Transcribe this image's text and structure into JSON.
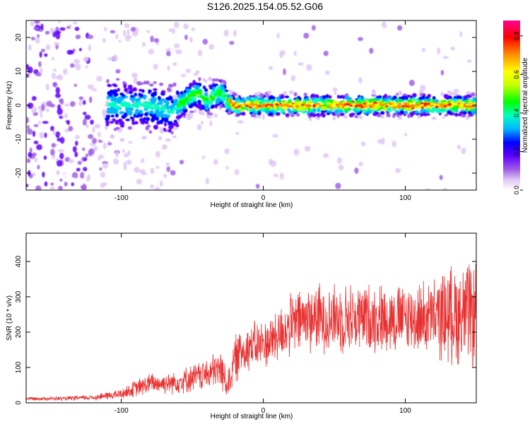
{
  "title": "S126.2025.154.05.52.G06",
  "chart_data": [
    {
      "type": "heatmap",
      "xlabel": "Height of straight line (km)",
      "ylabel": "Frequency (Hz)",
      "xlim": [
        -167,
        150
      ],
      "ylim": [
        -25,
        25
      ],
      "xticks": [
        -100,
        0,
        100
      ],
      "yticks": [
        -20,
        -10,
        0,
        10,
        20
      ],
      "colorbar": {
        "label": "Normalized spectral amplitude",
        "range": [
          0.0,
          0.88
        ],
        "ticks": [
          0.0,
          0.2,
          0.4,
          0.6,
          0.8
        ],
        "colormap": [
          "#ffffff",
          "#e0c8f4",
          "#a060e8",
          "#6000ff",
          "#0000ff",
          "#00b4ff",
          "#00ffc0",
          "#00ff00",
          "#c8ff00",
          "#ffff00",
          "#ff8c00",
          "#ff0000",
          "#ff0090"
        ]
      },
      "ridge": {
        "description_points_x": [
          -100,
          -90,
          -80,
          -70,
          -65,
          -60,
          -55,
          -50,
          -45,
          -40,
          -35,
          -30,
          -25,
          -20,
          -10,
          0,
          20,
          50,
          100,
          150
        ],
        "frequency_hz": [
          0,
          0,
          0,
          -1,
          -2,
          0,
          1.5,
          3,
          3.5,
          1.5,
          2.5,
          4,
          1,
          0,
          0,
          0,
          0,
          0,
          0,
          0
        ]
      }
    },
    {
      "type": "line",
      "xlabel": "Height of straight line (km)",
      "ylabel": "SNR (10 * v/v)",
      "xlim": [
        -167,
        150
      ],
      "ylim": [
        0,
        480
      ],
      "xticks": [
        -100,
        0,
        100
      ],
      "yticks": [
        0,
        100,
        200,
        300,
        400
      ],
      "color": "#e83030",
      "envelope": {
        "x": [
          -167,
          -140,
          -120,
          -100,
          -90,
          -80,
          -70,
          -60,
          -50,
          -40,
          -30,
          -25,
          -20,
          -15,
          -10,
          0,
          10,
          20,
          30,
          40,
          60,
          80,
          100,
          120,
          130,
          140,
          150
        ],
        "mean": [
          12,
          12,
          15,
          25,
          40,
          55,
          55,
          60,
          70,
          80,
          95,
          50,
          120,
          150,
          160,
          165,
          190,
          220,
          240,
          240,
          240,
          240,
          240,
          240,
          250,
          250,
          250
        ],
        "spread": [
          5,
          6,
          8,
          15,
          25,
          30,
          30,
          35,
          40,
          45,
          60,
          40,
          70,
          70,
          70,
          70,
          80,
          90,
          100,
          100,
          100,
          100,
          100,
          110,
          140,
          150,
          150
        ]
      }
    }
  ]
}
